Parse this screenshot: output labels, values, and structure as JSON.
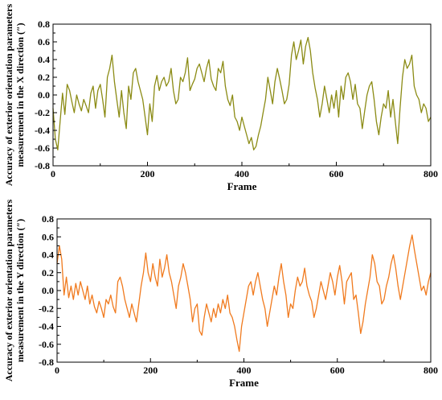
{
  "figure": {
    "panels": [
      {
        "xlabel": "Frame",
        "ylabel_line1": "Accuracy of exterior orientation parameters",
        "ylabel_line2": "measurement in the X direction (″)"
      },
      {
        "xlabel": "Frame",
        "ylabel_line1": "Accuracy of exterior orientation parameters",
        "ylabel_line2": "measurement in the Y direction (″)"
      }
    ]
  },
  "chart_data": [
    {
      "type": "line",
      "title": "",
      "xlabel": "Frame",
      "ylabel": "Accuracy of exterior orientation parameters measurement in the X direction (″)",
      "xlim": [
        0,
        800
      ],
      "ylim": [
        -0.8,
        0.8
      ],
      "xticks": [
        0,
        200,
        400,
        600,
        800
      ],
      "yticks": [
        -0.8,
        -0.6,
        -0.4,
        -0.2,
        0.0,
        0.2,
        0.4,
        0.6,
        0.8
      ],
      "grid": false,
      "color": "#8b8b14",
      "series": [
        {
          "x": [
            0,
            5,
            10,
            15,
            20,
            25,
            30,
            35,
            40,
            45,
            50,
            55,
            60,
            65,
            70,
            75,
            80,
            85,
            90,
            95,
            100,
            105,
            110,
            115,
            120,
            125,
            130,
            135,
            140,
            145,
            150,
            155,
            160,
            165,
            170,
            175,
            180,
            185,
            190,
            195,
            200,
            205,
            210,
            215,
            220,
            225,
            230,
            235,
            240,
            245,
            250,
            255,
            260,
            265,
            270,
            275,
            280,
            285,
            290,
            295,
            300,
            305,
            310,
            315,
            320,
            325,
            330,
            335,
            340,
            345,
            350,
            355,
            360,
            365,
            370,
            375,
            380,
            385,
            390,
            395,
            400,
            405,
            410,
            415,
            420,
            425,
            430,
            435,
            440,
            445,
            450,
            455,
            460,
            465,
            470,
            475,
            480,
            485,
            490,
            495,
            500,
            505,
            510,
            515,
            520,
            525,
            530,
            535,
            540,
            545,
            550,
            555,
            560,
            565,
            570,
            575,
            580,
            585,
            590,
            595,
            600,
            605,
            610,
            615,
            620,
            625,
            630,
            635,
            640,
            645,
            650,
            655,
            660,
            665,
            670,
            675,
            680,
            685,
            690,
            695,
            700,
            705,
            710,
            715,
            720,
            725,
            730,
            735,
            740,
            745,
            750,
            755,
            760,
            765,
            770,
            775,
            780,
            785,
            790,
            795,
            800
          ],
          "y": [
            -0.15,
            -0.5,
            -0.62,
            -0.3,
            0.02,
            -0.22,
            0.12,
            0.05,
            -0.08,
            -0.2,
            0.0,
            -0.1,
            -0.18,
            -0.05,
            -0.12,
            -0.2,
            0.02,
            0.1,
            -0.15,
            0.05,
            0.12,
            -0.05,
            -0.25,
            0.2,
            0.3,
            0.45,
            0.15,
            -0.05,
            -0.25,
            0.05,
            -0.2,
            -0.38,
            0.1,
            -0.05,
            0.25,
            0.3,
            0.15,
            0.05,
            -0.05,
            -0.25,
            -0.45,
            -0.1,
            -0.3,
            0.1,
            0.22,
            0.05,
            0.15,
            0.2,
            0.1,
            0.15,
            0.3,
            0.05,
            -0.1,
            -0.05,
            0.2,
            0.15,
            0.25,
            0.42,
            0.05,
            0.12,
            0.18,
            0.3,
            0.35,
            0.25,
            0.15,
            0.3,
            0.4,
            0.18,
            0.1,
            0.05,
            0.3,
            0.25,
            0.38,
            0.1,
            -0.05,
            -0.12,
            0.0,
            -0.25,
            -0.3,
            -0.4,
            -0.25,
            -0.35,
            -0.45,
            -0.55,
            -0.48,
            -0.62,
            -0.58,
            -0.45,
            -0.35,
            -0.2,
            -0.05,
            0.2,
            0.05,
            -0.1,
            0.15,
            0.3,
            0.18,
            0.05,
            -0.1,
            -0.05,
            0.12,
            0.45,
            0.6,
            0.4,
            0.5,
            0.62,
            0.35,
            0.55,
            0.65,
            0.5,
            0.25,
            0.08,
            -0.05,
            -0.25,
            -0.1,
            0.1,
            -0.05,
            -0.2,
            0.0,
            -0.15,
            0.05,
            -0.25,
            0.1,
            -0.05,
            0.2,
            0.25,
            0.15,
            -0.05,
            0.12,
            -0.1,
            -0.15,
            -0.38,
            -0.18,
            0.0,
            0.1,
            0.15,
            -0.05,
            -0.3,
            -0.45,
            -0.25,
            -0.1,
            -0.15,
            0.05,
            -0.25,
            -0.05,
            -0.3,
            -0.55,
            -0.15,
            0.2,
            0.4,
            0.3,
            0.35,
            0.45,
            0.1,
            0.0,
            -0.05,
            -0.2,
            -0.1,
            -0.15,
            -0.3,
            -0.25
          ]
        }
      ]
    },
    {
      "type": "line",
      "title": "",
      "xlabel": "Frame",
      "ylabel": "Accuracy of exterior orientation parameters measurement in the Y direction (″)",
      "xlim": [
        0,
        800
      ],
      "ylim": [
        -0.8,
        0.8
      ],
      "xticks": [
        0,
        200,
        400,
        600,
        800
      ],
      "yticks": [
        -0.8,
        -0.6,
        -0.4,
        -0.2,
        0.0,
        0.2,
        0.4,
        0.6,
        0.8
      ],
      "grid": false,
      "color": "#f07a1e",
      "series": [
        {
          "x": [
            0,
            5,
            10,
            15,
            20,
            25,
            30,
            35,
            40,
            45,
            50,
            55,
            60,
            65,
            70,
            75,
            80,
            85,
            90,
            95,
            100,
            105,
            110,
            115,
            120,
            125,
            130,
            135,
            140,
            145,
            150,
            155,
            160,
            165,
            170,
            175,
            180,
            185,
            190,
            195,
            200,
            205,
            210,
            215,
            220,
            225,
            230,
            235,
            240,
            245,
            250,
            255,
            260,
            265,
            270,
            275,
            280,
            285,
            290,
            295,
            300,
            305,
            310,
            315,
            320,
            325,
            330,
            335,
            340,
            345,
            350,
            355,
            360,
            365,
            370,
            375,
            380,
            385,
            390,
            395,
            400,
            405,
            410,
            415,
            420,
            425,
            430,
            435,
            440,
            445,
            450,
            455,
            460,
            465,
            470,
            475,
            480,
            485,
            490,
            495,
            500,
            505,
            510,
            515,
            520,
            525,
            530,
            535,
            540,
            545,
            550,
            555,
            560,
            565,
            570,
            575,
            580,
            585,
            590,
            595,
            600,
            605,
            610,
            615,
            620,
            625,
            630,
            635,
            640,
            645,
            650,
            655,
            660,
            665,
            670,
            675,
            680,
            685,
            690,
            695,
            700,
            705,
            710,
            715,
            720,
            725,
            730,
            735,
            740,
            745,
            750,
            755,
            760,
            765,
            770,
            775,
            780,
            785,
            790,
            795,
            800
          ],
          "y": [
            0.3,
            0.5,
            0.35,
            -0.05,
            0.15,
            -0.08,
            0.05,
            -0.1,
            0.08,
            -0.05,
            0.1,
            0.0,
            -0.1,
            0.05,
            -0.15,
            -0.05,
            -0.18,
            -0.25,
            -0.12,
            -0.2,
            -0.3,
            -0.1,
            -0.15,
            -0.05,
            -0.18,
            -0.25,
            0.1,
            0.15,
            0.05,
            -0.1,
            -0.2,
            -0.3,
            -0.15,
            -0.25,
            -0.35,
            -0.15,
            0.05,
            0.2,
            0.42,
            0.2,
            0.1,
            0.3,
            0.15,
            0.05,
            0.35,
            0.15,
            0.25,
            0.4,
            0.2,
            0.1,
            -0.05,
            -0.2,
            0.05,
            0.15,
            0.3,
            0.2,
            0.05,
            -0.1,
            -0.35,
            -0.2,
            -0.15,
            -0.45,
            -0.5,
            -0.3,
            -0.15,
            -0.25,
            -0.35,
            -0.2,
            -0.3,
            -0.15,
            -0.25,
            -0.1,
            -0.2,
            -0.05,
            -0.25,
            -0.3,
            -0.4,
            -0.55,
            -0.68,
            -0.4,
            -0.25,
            -0.1,
            0.05,
            0.1,
            -0.05,
            0.1,
            0.2,
            0.05,
            -0.1,
            -0.2,
            -0.4,
            -0.25,
            -0.1,
            0.05,
            -0.05,
            0.15,
            0.3,
            0.1,
            -0.05,
            -0.3,
            -0.15,
            -0.2,
            0.0,
            0.15,
            0.05,
            0.1,
            0.25,
            0.05,
            -0.05,
            -0.12,
            -0.3,
            -0.2,
            -0.05,
            0.1,
            0.0,
            -0.1,
            0.05,
            0.2,
            0.1,
            -0.05,
            0.15,
            0.28,
            0.1,
            -0.15,
            0.1,
            0.15,
            0.2,
            -0.1,
            -0.05,
            -0.25,
            -0.48,
            -0.35,
            -0.15,
            0.0,
            0.15,
            0.4,
            0.3,
            0.1,
            0.05,
            -0.15,
            -0.1,
            0.05,
            0.15,
            0.3,
            0.4,
            0.25,
            0.05,
            -0.1,
            0.05,
            0.2,
            0.35,
            0.5,
            0.62,
            0.45,
            0.3,
            0.15,
            0.0,
            0.05,
            -0.05,
            0.1,
            0.2
          ]
        }
      ]
    }
  ]
}
